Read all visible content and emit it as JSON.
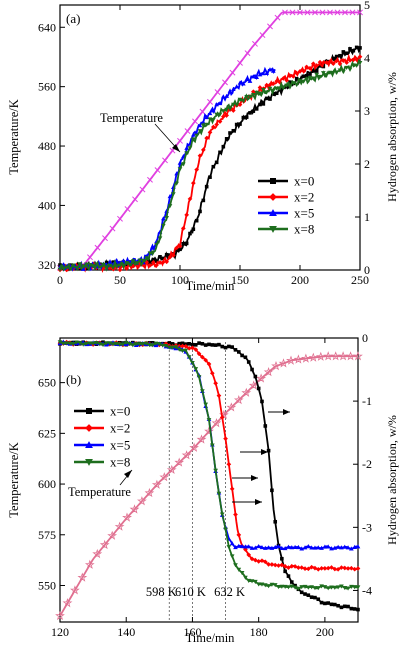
{
  "chart_data": [
    {
      "panel_label": "(a)",
      "type": "line",
      "xlabel": "Time/min",
      "ylabel_left": "Temperature/K",
      "ylabel_right": "Hydrogen absorption, w/%",
      "xlim": [
        0,
        250
      ],
      "ylim_left": [
        313,
        670
      ],
      "ylim_right": [
        0,
        5
      ],
      "x_ticks": [
        "0",
        "50",
        "100",
        "150",
        "200",
        "250"
      ],
      "y_left_ticks": [
        "320",
        "400",
        "480",
        "560",
        "640"
      ],
      "y_right_ticks": [
        "0",
        "1",
        "2",
        "3",
        "4",
        "5"
      ],
      "legend_position": "lower-right",
      "annotation": "Temperature",
      "series": [
        {
          "name": "Temperature",
          "axis": "left",
          "color": "#e040e0",
          "marker": "x",
          "x": [
            0,
            20,
            40,
            60,
            80,
            100,
            120,
            140,
            160,
            185,
            250
          ],
          "y": [
            316,
            320,
            361,
            403,
            445,
            487,
            529,
            571,
            613,
            660,
            660
          ]
        },
        {
          "name": "x=0",
          "axis": "right",
          "color": "#000000",
          "marker": "square",
          "x": [
            0,
            40,
            60,
            80,
            95,
            105,
            115,
            125,
            140,
            155,
            170,
            185,
            200,
            220,
            240,
            250
          ],
          "y": [
            0.05,
            0.1,
            0.12,
            0.2,
            0.28,
            0.5,
            1.0,
            1.8,
            2.5,
            2.9,
            3.2,
            3.4,
            3.6,
            3.9,
            4.1,
            4.2
          ]
        },
        {
          "name": "x=2",
          "axis": "right",
          "color": "#ff0000",
          "marker": "diamond",
          "x": [
            0,
            50,
            80,
            90,
            100,
            108,
            115,
            125,
            140,
            160,
            180,
            200,
            220,
            250
          ],
          "y": [
            0.05,
            0.06,
            0.1,
            0.2,
            0.5,
            1.3,
            2.0,
            2.6,
            3.0,
            3.3,
            3.55,
            3.75,
            3.9,
            4.0
          ]
        },
        {
          "name": "x=5",
          "axis": "right",
          "color": "#0000ff",
          "marker": "triangle",
          "x": [
            0,
            40,
            70,
            80,
            90,
            100,
            110,
            120,
            135,
            150,
            165,
            180
          ],
          "y": [
            0.05,
            0.1,
            0.2,
            0.5,
            1.2,
            2.0,
            2.5,
            2.85,
            3.2,
            3.5,
            3.7,
            3.8
          ]
        },
        {
          "name": "x=8",
          "axis": "right",
          "color": "#1e6e1e",
          "marker": "triangle-down",
          "x": [
            0,
            40,
            70,
            80,
            90,
            100,
            110,
            120,
            135,
            150,
            170,
            190,
            210,
            230,
            250
          ],
          "y": [
            0.05,
            0.08,
            0.15,
            0.4,
            1.1,
            1.9,
            2.4,
            2.7,
            3.0,
            3.2,
            3.35,
            3.5,
            3.6,
            3.75,
            3.9
          ]
        }
      ]
    },
    {
      "panel_label": "(b)",
      "type": "line",
      "xlabel": "Time/min",
      "ylabel_left": "Temperature/K",
      "ylabel_right": "Hydrogen absorption, w/%",
      "xlim": [
        120,
        210
      ],
      "ylim_left": [
        532,
        672
      ],
      "ylim_right": [
        -4.5,
        0
      ],
      "x_ticks": [
        "120",
        "140",
        "160",
        "180",
        "200"
      ],
      "y_left_ticks": [
        "550",
        "575",
        "600",
        "625",
        "650"
      ],
      "y_right_ticks": [
        "-4",
        "-3",
        "-2",
        "-1",
        "0"
      ],
      "legend_position": "center-left",
      "annotation": "Temperature",
      "reference_lines": [
        {
          "x": 153,
          "label": "598 K"
        },
        {
          "x": 160,
          "label": "610 K"
        },
        {
          "x": 170,
          "label": "632 K"
        }
      ],
      "series": [
        {
          "name": "Temperature",
          "axis": "left",
          "color": "#e07090",
          "marker": "star",
          "x": [
            120,
            130,
            140,
            150,
            160,
            170,
            180,
            185,
            190,
            200,
            210
          ],
          "y": [
            535,
            563,
            583,
            601,
            617,
            635,
            651,
            658,
            661,
            663,
            663
          ]
        },
        {
          "name": "x=0",
          "axis": "right",
          "color": "#000000",
          "marker": "square",
          "x": [
            120,
            150,
            165,
            172,
            176,
            179,
            181,
            183,
            184.5,
            186,
            188,
            192,
            200,
            210
          ],
          "y": [
            -0.08,
            -0.09,
            -0.1,
            -0.15,
            -0.3,
            -0.6,
            -1.0,
            -1.8,
            -2.7,
            -3.3,
            -3.7,
            -4.0,
            -4.2,
            -4.3
          ]
        },
        {
          "name": "x=2",
          "axis": "right",
          "color": "#ff0000",
          "marker": "diamond",
          "x": [
            120,
            150,
            160,
            165,
            168,
            170,
            172,
            173.5,
            175,
            178,
            185,
            195,
            210
          ],
          "y": [
            -0.08,
            -0.1,
            -0.15,
            -0.4,
            -0.9,
            -1.6,
            -2.4,
            -3.0,
            -3.3,
            -3.5,
            -3.6,
            -3.65,
            -3.65
          ]
        },
        {
          "name": "x=5",
          "axis": "right",
          "color": "#0000ff",
          "marker": "triangle",
          "x": [
            120,
            150,
            158,
            162,
            165,
            167,
            169,
            171,
            173,
            180,
            195,
            210
          ],
          "y": [
            -0.08,
            -0.1,
            -0.2,
            -0.6,
            -1.3,
            -2.1,
            -2.8,
            -3.2,
            -3.3,
            -3.32,
            -3.32,
            -3.32
          ]
        },
        {
          "name": "x=8",
          "axis": "right",
          "color": "#1e6e1e",
          "marker": "triangle-down",
          "x": [
            120,
            150,
            158,
            162,
            165,
            167,
            169,
            171,
            173,
            176,
            180,
            190,
            200,
            210
          ],
          "y": [
            -0.08,
            -0.1,
            -0.2,
            -0.6,
            -1.3,
            -2.1,
            -2.8,
            -3.3,
            -3.6,
            -3.8,
            -3.9,
            -3.95,
            -3.95,
            -3.95
          ]
        }
      ]
    }
  ]
}
